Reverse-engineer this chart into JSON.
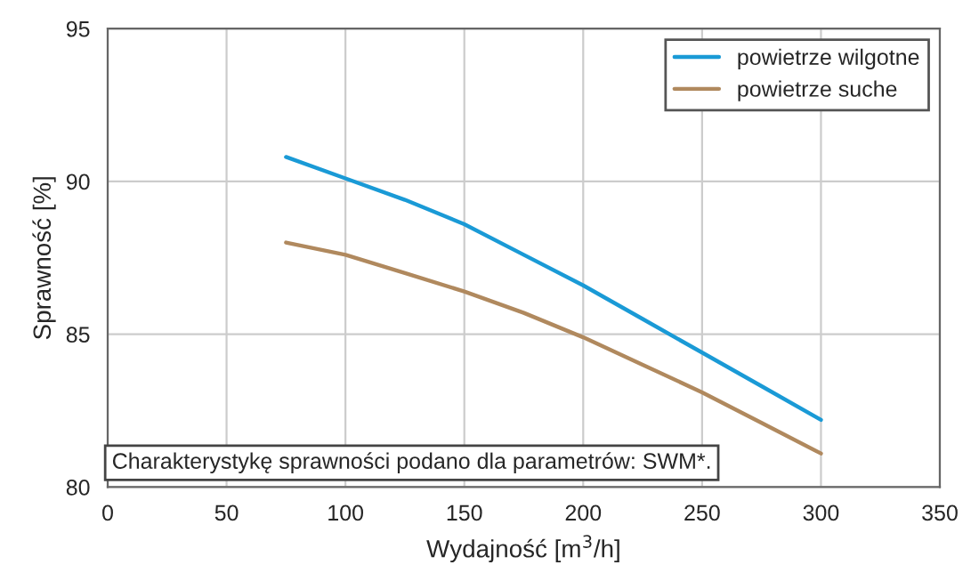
{
  "chart_data": {
    "type": "line",
    "xlabel": "Wydajność [m$^{3}$/h]",
    "ylabel": "Sprawność [%]",
    "x": [
      75,
      100,
      125,
      150,
      175,
      200,
      225,
      250,
      275,
      300
    ],
    "series": [
      {
        "name": "powietrze wilgotne",
        "color": "#1a9ad6",
        "values": [
          90.8,
          90.1,
          89.4,
          88.6,
          87.6,
          86.6,
          85.5,
          84.4,
          83.3,
          82.2
        ]
      },
      {
        "name": "powietrze suche",
        "color": "#b0895e",
        "values": [
          88.0,
          87.6,
          87.0,
          86.4,
          85.7,
          84.9,
          84.0,
          83.1,
          82.1,
          81.1
        ]
      }
    ],
    "xlim": [
      0,
      350
    ],
    "xticks": [
      0,
      50,
      100,
      150,
      200,
      250,
      300,
      350
    ],
    "ylim": [
      80,
      95
    ],
    "yticks": [
      80,
      85,
      90,
      95
    ],
    "grid": true,
    "legend": "top right",
    "marker": "none",
    "line_style": "solid",
    "annotations": [
      "Charakterystykę sprawności podano dla parametrów: SWM*."
    ]
  }
}
